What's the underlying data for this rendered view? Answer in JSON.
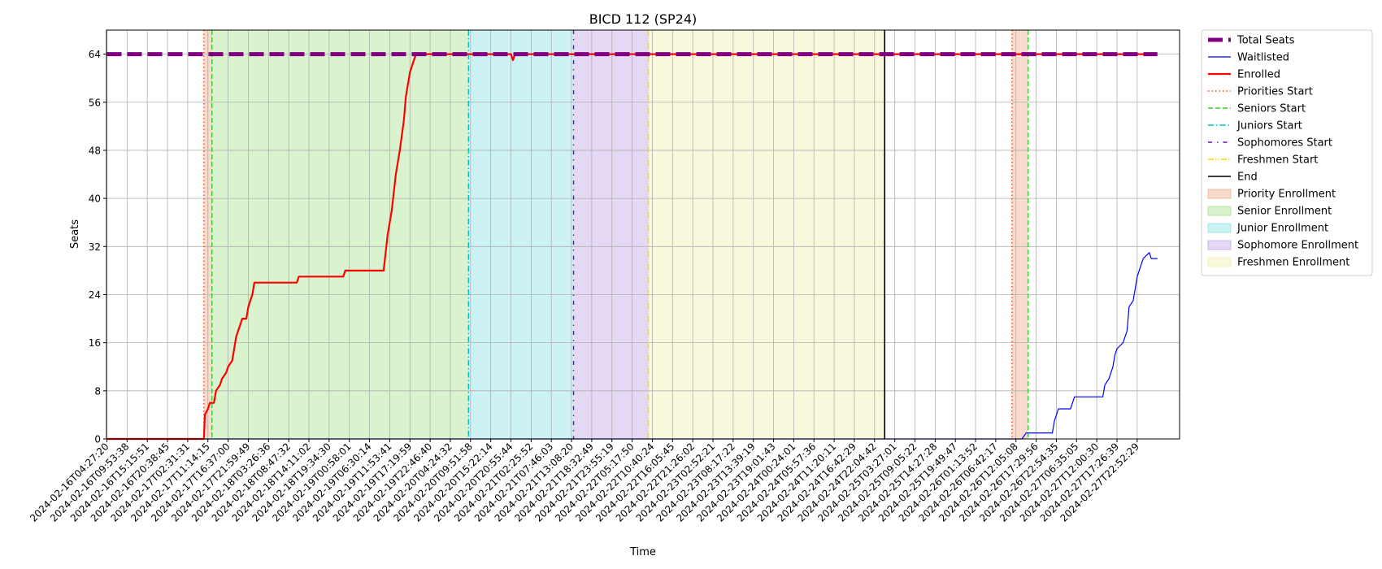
{
  "chart_data": {
    "type": "line",
    "title": "BICD 112 (SP24)",
    "xlabel": "Time",
    "ylabel": "Seats",
    "ylim": [
      0,
      68
    ],
    "yticks": [
      0,
      8,
      16,
      24,
      32,
      40,
      48,
      56,
      64
    ],
    "grid": true,
    "legend_position": "outside-right",
    "x_ticks": [
      "2024-02-16T04:27:20",
      "2024-02-16T09:53:38",
      "2024-02-16T15:15:51",
      "2024-02-16T20:38:45",
      "2024-02-17T02:31:31",
      "2024-02-17T11:14:15",
      "2024-02-17T16:37:00",
      "2024-02-17T21:59:49",
      "2024-02-18T03:26:36",
      "2024-02-18T08:47:32",
      "2024-02-18T14:11:02",
      "2024-02-18T19:34:30",
      "2024-02-19T00:58:01",
      "2024-02-19T06:30:14",
      "2024-02-19T11:53:41",
      "2024-02-19T17:19:59",
      "2024-02-19T22:46:40",
      "2024-02-20T04:24:32",
      "2024-02-20T09:51:58",
      "2024-02-20T15:22:14",
      "2024-02-20T20:55:44",
      "2024-02-21T02:25:52",
      "2024-02-21T07:46:03",
      "2024-02-21T13:08:20",
      "2024-02-21T18:32:49",
      "2024-02-21T23:55:19",
      "2024-02-22T05:17:50",
      "2024-02-22T10:40:24",
      "2024-02-22T16:05:45",
      "2024-02-22T21:26:02",
      "2024-02-23T02:52:21",
      "2024-02-23T08:17:22",
      "2024-02-23T13:39:19",
      "2024-02-23T19:01:43",
      "2024-02-24T00:24:01",
      "2024-02-24T05:57:36",
      "2024-02-24T11:20:11",
      "2024-02-24T16:42:29",
      "2024-02-24T22:04:42",
      "2024-02-25T03:27:01",
      "2024-02-25T09:05:22",
      "2024-02-25T14:27:28",
      "2024-02-25T19:49:47",
      "2024-02-26T01:13:52",
      "2024-02-26T06:42:17",
      "2024-02-26T12:05:08",
      "2024-02-26T17:29:56",
      "2024-02-26T22:54:35",
      "2024-02-27T06:35:05",
      "2024-02-27T12:00:30",
      "2024-02-27T17:26:39",
      "2024-02-27T22:52:29"
    ],
    "x_range": [
      0,
      52
    ],
    "series": [
      {
        "name": "Total Seats",
        "color": "#800080",
        "style": "dashed-thick",
        "points": [
          [
            0,
            64
          ],
          [
            52,
            64
          ]
        ]
      },
      {
        "name": "Waitlisted",
        "color": "#0000ff",
        "style": "thin",
        "points": [
          [
            0,
            0
          ],
          [
            45.3,
            0
          ],
          [
            45.5,
            1
          ],
          [
            46.8,
            1
          ],
          [
            46.9,
            3
          ],
          [
            47.0,
            4
          ],
          [
            47.1,
            5
          ],
          [
            47.7,
            5
          ],
          [
            47.8,
            6
          ],
          [
            47.9,
            7
          ],
          [
            49.3,
            7
          ],
          [
            49.4,
            9
          ],
          [
            49.6,
            10
          ],
          [
            49.8,
            12
          ],
          [
            49.9,
            14
          ],
          [
            50.0,
            15
          ],
          [
            50.3,
            16
          ],
          [
            50.5,
            18
          ],
          [
            50.6,
            22
          ],
          [
            50.8,
            23
          ],
          [
            50.9,
            25
          ],
          [
            51.0,
            27
          ],
          [
            51.1,
            28
          ],
          [
            51.3,
            30
          ],
          [
            51.6,
            31
          ],
          [
            51.7,
            30
          ],
          [
            52,
            30
          ]
        ]
      },
      {
        "name": "Enrolled",
        "color": "#ff0000",
        "style": "thick",
        "points": [
          [
            0,
            0
          ],
          [
            4.8,
            0
          ],
          [
            4.85,
            4
          ],
          [
            5.0,
            5
          ],
          [
            5.1,
            6
          ],
          [
            5.3,
            6
          ],
          [
            5.4,
            8
          ],
          [
            5.6,
            9
          ],
          [
            5.7,
            10
          ],
          [
            5.9,
            11
          ],
          [
            6.0,
            12
          ],
          [
            6.2,
            13
          ],
          [
            6.3,
            15
          ],
          [
            6.4,
            17
          ],
          [
            6.5,
            18
          ],
          [
            6.7,
            20
          ],
          [
            6.9,
            20
          ],
          [
            7.0,
            22
          ],
          [
            7.1,
            23
          ],
          [
            7.2,
            24
          ],
          [
            7.3,
            26
          ],
          [
            9.4,
            26
          ],
          [
            9.5,
            27
          ],
          [
            11.7,
            27
          ],
          [
            11.8,
            28
          ],
          [
            13.7,
            28
          ],
          [
            13.8,
            31
          ],
          [
            13.9,
            34
          ],
          [
            14.1,
            38
          ],
          [
            14.2,
            41
          ],
          [
            14.3,
            44
          ],
          [
            14.5,
            48
          ],
          [
            14.7,
            53
          ],
          [
            14.8,
            57
          ],
          [
            15.0,
            61
          ],
          [
            15.2,
            63
          ],
          [
            15.3,
            64
          ],
          [
            20.0,
            64
          ],
          [
            20.1,
            63
          ],
          [
            20.2,
            64
          ],
          [
            52,
            64
          ]
        ]
      }
    ],
    "vertical_lines": [
      {
        "name": "Priorities Start",
        "x": 4.8,
        "color": "#ff4500",
        "style": "dotted"
      },
      {
        "name": "Seniors Start",
        "x": 5.2,
        "color": "#32cd32",
        "style": "dashed"
      },
      {
        "name": "Juniors Start",
        "x": 17.9,
        "color": "#00bfbf",
        "style": "dashdot"
      },
      {
        "name": "Sophomores Start",
        "x": 23.1,
        "color": "#6a0dad",
        "style": "loosedashdot"
      },
      {
        "name": "Freshmen Start",
        "x": 26.8,
        "color": "#ffd700",
        "style": "dashdotdot"
      },
      {
        "name": "End",
        "x": 38.5,
        "color": "#000000",
        "style": "solid"
      },
      {
        "name": "Priorities Start",
        "x": 44.8,
        "color": "#ff4500",
        "style": "dotted"
      },
      {
        "name": "Seniors Start",
        "x": 45.6,
        "color": "#32cd32",
        "style": "dashed"
      }
    ],
    "spans": [
      {
        "name": "Priority Enrollment",
        "from": 4.8,
        "to": 5.2,
        "color": "#e8875a"
      },
      {
        "name": "Senior Enrollment",
        "from": 5.2,
        "to": 17.9,
        "color": "#7fd65a"
      },
      {
        "name": "Junior Enrollment",
        "from": 17.9,
        "to": 23.1,
        "color": "#5bd3d8"
      },
      {
        "name": "Sophomore Enrollment",
        "from": 23.1,
        "to": 26.8,
        "color": "#a67fd9"
      },
      {
        "name": "Freshmen Enrollment",
        "from": 26.8,
        "to": 38.5,
        "color": "#ece88a"
      },
      {
        "name": "Priority Enrollment",
        "from": 44.8,
        "to": 45.6,
        "color": "#e8875a"
      }
    ],
    "legend": [
      {
        "label": "Total Seats",
        "kind": "line",
        "color": "#800080",
        "style": "dashed-thick"
      },
      {
        "label": "Waitlisted",
        "kind": "line",
        "color": "#0000ff",
        "style": "thin"
      },
      {
        "label": "Enrolled",
        "kind": "line",
        "color": "#ff0000",
        "style": "thick"
      },
      {
        "label": "Priorities Start",
        "kind": "line",
        "color": "#ff4500",
        "style": "dotted"
      },
      {
        "label": "Seniors Start",
        "kind": "line",
        "color": "#32cd32",
        "style": "dashed"
      },
      {
        "label": "Juniors Start",
        "kind": "line",
        "color": "#00bfbf",
        "style": "dashdot"
      },
      {
        "label": "Sophomores Start",
        "kind": "line",
        "color": "#6a0dad",
        "style": "loosedashdot"
      },
      {
        "label": "Freshmen Start",
        "kind": "line",
        "color": "#ffd700",
        "style": "dashdotdot"
      },
      {
        "label": "End",
        "kind": "line",
        "color": "#000000",
        "style": "solid"
      },
      {
        "label": "Priority Enrollment",
        "kind": "patch",
        "color": "#e8875a"
      },
      {
        "label": "Senior Enrollment",
        "kind": "patch",
        "color": "#7fd65a"
      },
      {
        "label": "Junior Enrollment",
        "kind": "patch",
        "color": "#5bd3d8"
      },
      {
        "label": "Sophomore Enrollment",
        "kind": "patch",
        "color": "#a67fd9"
      },
      {
        "label": "Freshmen Enrollment",
        "kind": "patch",
        "color": "#ece88a"
      }
    ]
  }
}
